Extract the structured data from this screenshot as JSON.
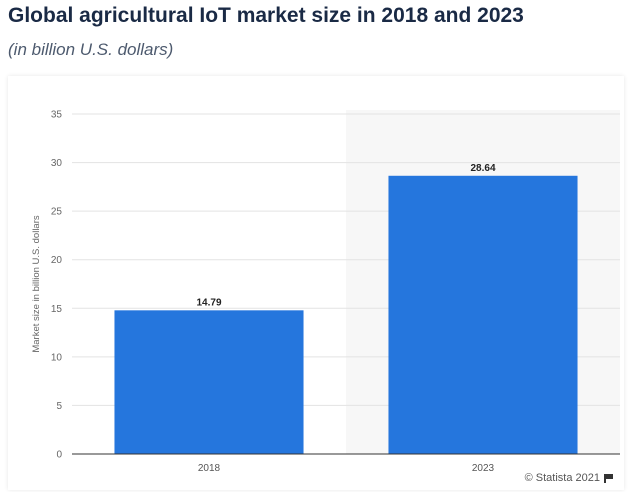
{
  "header": {
    "title": "Global agricultural IoT market size in 2018 and 2023",
    "subtitle": "(in billion U.S. dollars)"
  },
  "footer": {
    "credit": "© Statista 2021",
    "flag_icon": "flag-icon"
  },
  "colors": {
    "bar": "#2576dd",
    "grid": "#e3e3e3",
    "axis": "#333333",
    "band": "#f7f7f7"
  },
  "chart_data": {
    "type": "bar",
    "categories": [
      "2018",
      "2023"
    ],
    "values": [
      14.79,
      28.64
    ],
    "data_labels": [
      "14.79",
      "28.64"
    ],
    "title": "Global agricultural IoT market size in 2018 and 2023",
    "subtitle": "(in billion U.S. dollars)",
    "xlabel": "",
    "ylabel": "Market size in billion U.S. dollars",
    "ylim": [
      0,
      35
    ],
    "yticks": [
      0,
      5,
      10,
      15,
      20,
      25,
      30,
      35
    ],
    "grid": true,
    "legend": "none"
  }
}
